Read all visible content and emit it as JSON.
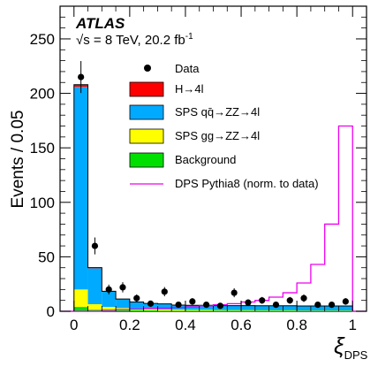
{
  "chart_data": {
    "type": "bar",
    "bin_edges": [
      0,
      0.05,
      0.1,
      0.15,
      0.2,
      0.25,
      0.3,
      0.35,
      0.4,
      0.45,
      0.5,
      0.55,
      0.6,
      0.65,
      0.7,
      0.75,
      0.8,
      0.85,
      0.9,
      0.95,
      1.0
    ],
    "stacked_series": [
      {
        "name": "Background",
        "color": "#00e000",
        "values": [
          4,
          1.5,
          1,
          1,
          0.8,
          0.8,
          0.6,
          0.5,
          0.5,
          0.5,
          0.4,
          0.4,
          0.4,
          0.4,
          0.4,
          0.4,
          0.3,
          0.3,
          0.3,
          0.3
        ]
      },
      {
        "name": "SPS gg→ZZ→4l",
        "color": "#ffff00",
        "values": [
          16,
          5,
          3,
          2,
          1.5,
          1.2,
          1,
          1,
          0.8,
          0.8,
          0.6,
          0.6,
          0.6,
          0.5,
          0.5,
          0.5,
          0.4,
          0.4,
          0.4,
          0.4
        ]
      },
      {
        "name": "SPS qq̄→ZZ→4l",
        "color": "#00aaff",
        "values": [
          186,
          33,
          14,
          8,
          6,
          5,
          5,
          4,
          4,
          4,
          4,
          4,
          4,
          4,
          4,
          4,
          4,
          4,
          4,
          4
        ]
      },
      {
        "name": "H→4l",
        "color": "#ff0000",
        "values": [
          2,
          0.6,
          0.4,
          0.3,
          0.2,
          0.2,
          0.2,
          0.2,
          0.2,
          0.2,
          0.2,
          0.2,
          0.2,
          0.2,
          0.2,
          0.2,
          0.2,
          0.2,
          0.2,
          0.2
        ]
      }
    ],
    "data_points": {
      "name": "Data",
      "x": [
        0.025,
        0.075,
        0.125,
        0.175,
        0.225,
        0.275,
        0.325,
        0.375,
        0.425,
        0.475,
        0.525,
        0.575,
        0.625,
        0.675,
        0.725,
        0.775,
        0.825,
        0.875,
        0.925,
        0.975
      ],
      "y": [
        215,
        60,
        20,
        22,
        12,
        7,
        18,
        6,
        9,
        6,
        5,
        17,
        8,
        10,
        6,
        10,
        12,
        6,
        6,
        9
      ]
    },
    "dps_line": {
      "name": "DPS Pythia8 (norm. to data)",
      "color": "#ee00ee",
      "values": [
        0,
        0,
        1,
        1.5,
        2,
        2.5,
        3,
        3.5,
        4,
        5,
        6,
        7,
        8.5,
        10,
        13,
        17,
        26,
        43,
        80,
        170
      ]
    },
    "xlabel": "ξ",
    "xlabel_sub": "DPS",
    "ylabel": "Events / 0.05",
    "xlim": [
      -0.05,
      1.05
    ],
    "ylim": [
      0,
      280
    ],
    "xticks": [
      "0",
      "0.2",
      "0.4",
      "0.6",
      "0.8",
      "1"
    ],
    "yticks": [
      "0",
      "50",
      "100",
      "150",
      "200",
      "250"
    ],
    "atlas_label": "ATLAS",
    "energy_label": "√s = 8 TeV, 20.2 fb",
    "energy_label_sup": "-1",
    "legend_placement": "top-center"
  },
  "legend": {
    "data": "Data",
    "higgs": "H→4l",
    "sps_qq": "SPS qq̄→ZZ→4l",
    "sps_gg": "SPS gg→ZZ→4l",
    "background": "Background",
    "dps": "DPS Pythia8 (norm. to data)"
  },
  "colors": {
    "higgs": "#ff0000",
    "sps_qq": "#00aaff",
    "sps_gg": "#ffff00",
    "background": "#00e000",
    "dps": "#ee00ee"
  }
}
